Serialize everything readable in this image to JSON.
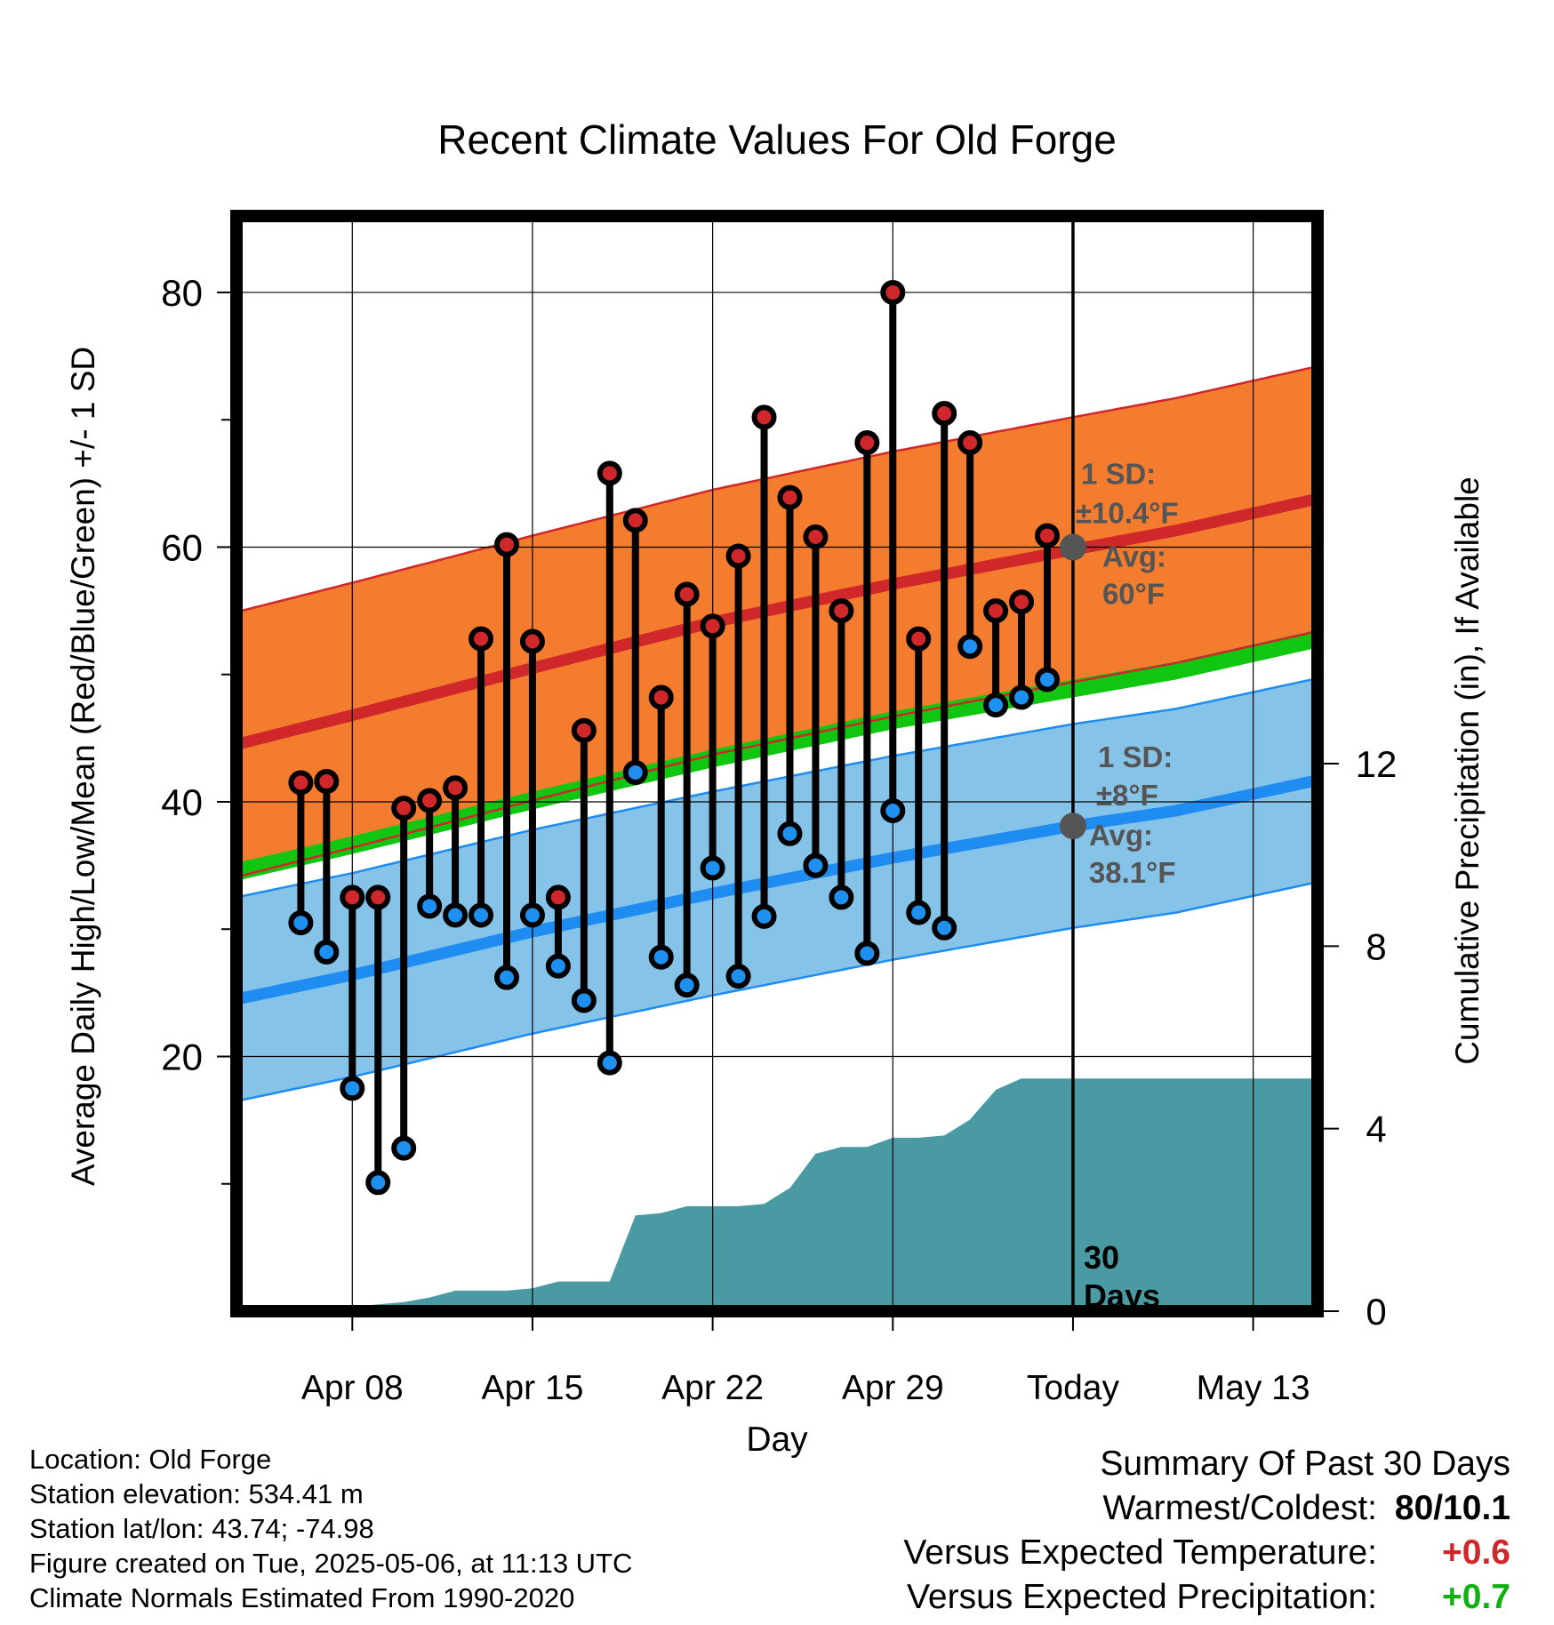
{
  "chart_data": {
    "type": "bar",
    "title": "Recent Climate Values For Old Forge",
    "xlabel": "Day",
    "ylabel": "Average Daily High/Low/Mean (Red/Blue/Green) +/- 1 SD",
    "y2label": "Cumulative Precipitation (in), If Available",
    "x_range": [
      -4.5,
      37.5
    ],
    "ylim": [
      0,
      86
    ],
    "y2lim": [
      0,
      24
    ],
    "x_ticks": [
      {
        "x": 0,
        "label": "Apr 08"
      },
      {
        "x": 7,
        "label": "Apr 15"
      },
      {
        "x": 14,
        "label": "Apr 22"
      },
      {
        "x": 21,
        "label": "Apr 29"
      },
      {
        "x": 28,
        "label": "Today"
      },
      {
        "x": 35,
        "label": "May 13"
      }
    ],
    "y_ticks": [
      20,
      40,
      60,
      80
    ],
    "y_minor_ticks": [
      10,
      30,
      50,
      70
    ],
    "y2_ticks": [
      0,
      4,
      8,
      12
    ],
    "grid": true,
    "daily": {
      "x": [
        -2,
        -1,
        0,
        1,
        2,
        3,
        4,
        5,
        6,
        7,
        8,
        9,
        10,
        11,
        12,
        13,
        14,
        15,
        16,
        17,
        18,
        19,
        20,
        21,
        22,
        23,
        24,
        25,
        26,
        27
      ],
      "high": [
        41.5,
        41.6,
        32.5,
        32.5,
        39.5,
        40.1,
        41.1,
        52.8,
        60.2,
        52.6,
        32.5,
        45.6,
        65.8,
        62.1,
        48.2,
        56.3,
        53.8,
        59.3,
        70.2,
        63.9,
        60.8,
        55,
        68.2,
        80,
        52.8,
        70.5,
        68.2,
        55,
        55.7,
        60.9
      ],
      "low": [
        30.5,
        28.2,
        17.5,
        10.1,
        12.8,
        31.8,
        31.1,
        31.1,
        26.2,
        31.1,
        27.1,
        24.4,
        19.5,
        42.3,
        27.8,
        25.6,
        34.8,
        26.3,
        31,
        37.5,
        35,
        32.5,
        28.1,
        39.3,
        31.3,
        30.1,
        52.2,
        47.6,
        48.2,
        49.6
      ]
    },
    "normals": {
      "x": [
        -4.5,
        0,
        7,
        14,
        21,
        28,
        32,
        37.5
      ],
      "mean_high": [
        44.5,
        46.8,
        50.5,
        54.1,
        57.1,
        59.8,
        61.3,
        63.8
      ],
      "mean_low": [
        24.5,
        26.4,
        29.8,
        32.8,
        35.6,
        38.1,
        39.3,
        41.7
      ],
      "mean": [
        34.5,
        36.6,
        40.1,
        43.4,
        46.4,
        48.9,
        50.3,
        52.8
      ],
      "sd_high": 10.4,
      "sd_low": 8
    },
    "precipitation": {
      "x": [
        -4.5,
        -0.1,
        0,
        2,
        3,
        4,
        6,
        7,
        8,
        9,
        10,
        11,
        12,
        13,
        14,
        15,
        16,
        17,
        18,
        19,
        20,
        21,
        22,
        23,
        24,
        25,
        26,
        27,
        28,
        37.5
      ],
      "cumulative": [
        0,
        0,
        0.1,
        0.2,
        0.3,
        0.45,
        0.45,
        0.5,
        0.65,
        0.65,
        0.65,
        2.1,
        2.15,
        2.3,
        2.3,
        2.3,
        2.35,
        2.7,
        3.45,
        3.6,
        3.6,
        3.8,
        3.8,
        3.85,
        4.2,
        4.85,
        5.1,
        5.1,
        5.1,
        5.1
      ]
    },
    "annotations": {
      "high": {
        "line1": "1 SD:",
        "line2": "±10.4°F",
        "line3": "Avg:",
        "line4": "60°F",
        "x": 28,
        "y": 60
      },
      "low": {
        "line1": "1 SD:",
        "line2": "±8°F",
        "line3": "Avg:",
        "line4": "38.1°F",
        "x": 28,
        "y": 38.1
      },
      "today": {
        "line1": "30",
        "line2": "Days"
      }
    },
    "colors": {
      "high_band": "#f47c2e",
      "high_line": "#d0282a",
      "low_band": "#85c3e8",
      "low_line": "#1e8cf0",
      "mean_band": "#11c611",
      "precip": "#4a9aa4",
      "high_dot": "#d0282a",
      "low_dot": "#1e90f0",
      "avg_dot": "#555555",
      "annotation": "#555555"
    }
  },
  "info": {
    "location": "Location: Old Forge",
    "elevation": "Station elevation: 534.41 m",
    "latlon": "Station lat/lon: 43.74; -74.98",
    "created": "Figure created on Tue, 2025-05-06, at 11:13 UTC",
    "normals": "Climate Normals Estimated From 1990-2020"
  },
  "summary": {
    "title": "Summary Of Past 30 Days",
    "warmest_label": "Warmest/Coldest:",
    "warmest_value": "80/10.1",
    "temp_label": "Versus Expected Temperature:",
    "temp_value": "+0.6",
    "temp_color": "#d0282a",
    "precip_label": "Versus Expected Precipitation:",
    "precip_value": "+0.7",
    "precip_color": "#11b011"
  }
}
